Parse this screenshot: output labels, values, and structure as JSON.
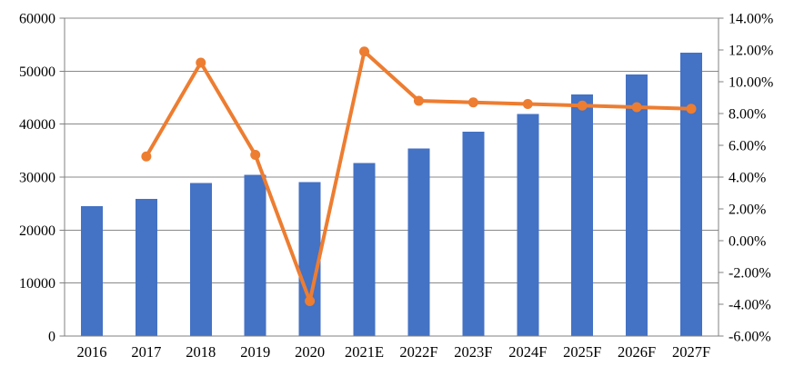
{
  "chart_data": {
    "type": "combo",
    "title": "",
    "categories": [
      "2016",
      "2017",
      "2018",
      "2019",
      "2020",
      "2021E",
      "2022F",
      "2023F",
      "2024F",
      "2025F",
      "2026F",
      "2027F"
    ],
    "series": [
      {
        "name": "volume-bars",
        "type": "bar",
        "axis": "left",
        "color": "#4472C4",
        "values": [
          24500,
          25900,
          28900,
          30400,
          29100,
          32700,
          35400,
          38600,
          41900,
          45600,
          49400,
          53500
        ]
      },
      {
        "name": "growth-rate-line",
        "type": "line",
        "axis": "right",
        "color": "#ED7D31",
        "values": [
          null,
          5.3,
          11.2,
          5.4,
          -3.8,
          11.9,
          8.8,
          8.7,
          8.6,
          8.5,
          8.4,
          8.3
        ]
      }
    ],
    "left_axis": {
      "min": 0,
      "max": 60000,
      "step": 10000,
      "tick_labels": [
        "0",
        "10000",
        "20000",
        "30000",
        "40000",
        "50000",
        "60000"
      ]
    },
    "right_axis": {
      "min": -6,
      "max": 14,
      "step": 2,
      "tick_labels": [
        "-6.00%",
        "-4.00%",
        "-2.00%",
        "0.00%",
        "2.00%",
        "4.00%",
        "6.00%",
        "8.00%",
        "10.00%",
        "12.00%",
        "14.00%"
      ]
    },
    "grid": true,
    "legend": "none",
    "colors": {
      "bar": "#4472C4",
      "line": "#ED7D31",
      "gridline": "#898989",
      "frame": "#808080",
      "text": "#000000",
      "background": "#FFFFFF"
    }
  }
}
